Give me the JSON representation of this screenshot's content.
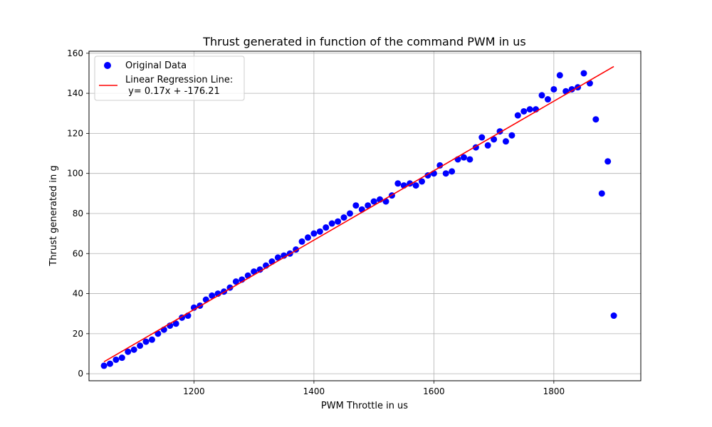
{
  "chart_data": {
    "type": "scatter",
    "title": "Thrust generated in function of the command PWM in us",
    "xlabel": "PWM Throttle in us",
    "ylabel": "Thrust generated in g",
    "xlim": [
      1025,
      1945
    ],
    "ylim": [
      -3.5,
      161
    ],
    "x_ticks": [
      1200,
      1400,
      1600,
      1800
    ],
    "y_ticks": [
      0,
      20,
      40,
      60,
      80,
      100,
      120,
      140,
      160
    ],
    "grid": true,
    "legend_position": "top-left",
    "series": [
      {
        "name": "Original Data",
        "kind": "scatter",
        "color": "#0000ff",
        "points": [
          [
            1050,
            4
          ],
          [
            1060,
            5
          ],
          [
            1070,
            7
          ],
          [
            1080,
            8
          ],
          [
            1090,
            11
          ],
          [
            1100,
            12
          ],
          [
            1110,
            14
          ],
          [
            1120,
            16
          ],
          [
            1130,
            17
          ],
          [
            1140,
            20
          ],
          [
            1150,
            22
          ],
          [
            1160,
            24
          ],
          [
            1170,
            25
          ],
          [
            1180,
            28
          ],
          [
            1190,
            29
          ],
          [
            1200,
            33
          ],
          [
            1210,
            34
          ],
          [
            1220,
            37
          ],
          [
            1230,
            39
          ],
          [
            1240,
            40
          ],
          [
            1250,
            41
          ],
          [
            1260,
            43
          ],
          [
            1270,
            46
          ],
          [
            1280,
            47
          ],
          [
            1290,
            49
          ],
          [
            1300,
            51
          ],
          [
            1310,
            52
          ],
          [
            1320,
            54
          ],
          [
            1330,
            56
          ],
          [
            1340,
            58
          ],
          [
            1350,
            59
          ],
          [
            1360,
            60
          ],
          [
            1370,
            62
          ],
          [
            1380,
            66
          ],
          [
            1390,
            68
          ],
          [
            1400,
            70
          ],
          [
            1410,
            71
          ],
          [
            1420,
            73
          ],
          [
            1430,
            75
          ],
          [
            1440,
            76
          ],
          [
            1450,
            78
          ],
          [
            1460,
            80
          ],
          [
            1470,
            84
          ],
          [
            1480,
            82
          ],
          [
            1490,
            84
          ],
          [
            1500,
            86
          ],
          [
            1510,
            87
          ],
          [
            1520,
            86
          ],
          [
            1530,
            89
          ],
          [
            1540,
            95
          ],
          [
            1550,
            94
          ],
          [
            1560,
            95
          ],
          [
            1570,
            94
          ],
          [
            1580,
            96
          ],
          [
            1590,
            99
          ],
          [
            1600,
            100
          ],
          [
            1610,
            104
          ],
          [
            1620,
            100
          ],
          [
            1630,
            101
          ],
          [
            1640,
            107
          ],
          [
            1650,
            108
          ],
          [
            1660,
            107
          ],
          [
            1670,
            113
          ],
          [
            1680,
            118
          ],
          [
            1690,
            114
          ],
          [
            1700,
            117
          ],
          [
            1710,
            121
          ],
          [
            1720,
            116
          ],
          [
            1730,
            119
          ],
          [
            1740,
            129
          ],
          [
            1750,
            131
          ],
          [
            1760,
            132
          ],
          [
            1770,
            132
          ],
          [
            1780,
            139
          ],
          [
            1790,
            137
          ],
          [
            1800,
            142
          ],
          [
            1810,
            149
          ],
          [
            1820,
            141
          ],
          [
            1830,
            142
          ],
          [
            1840,
            143
          ],
          [
            1850,
            150
          ],
          [
            1860,
            145
          ],
          [
            1870,
            127
          ],
          [
            1880,
            90
          ],
          [
            1890,
            106
          ],
          [
            1900,
            29
          ]
        ]
      },
      {
        "name": "Linear Regression Line:\n y= 0.17x + -176.21",
        "name_lines": [
          "Linear Regression Line:",
          " y= 0.17x + -176.21"
        ],
        "kind": "line",
        "color": "#ff0000",
        "points": [
          [
            1050,
            6.0
          ],
          [
            1900,
            153.4
          ]
        ]
      }
    ]
  }
}
